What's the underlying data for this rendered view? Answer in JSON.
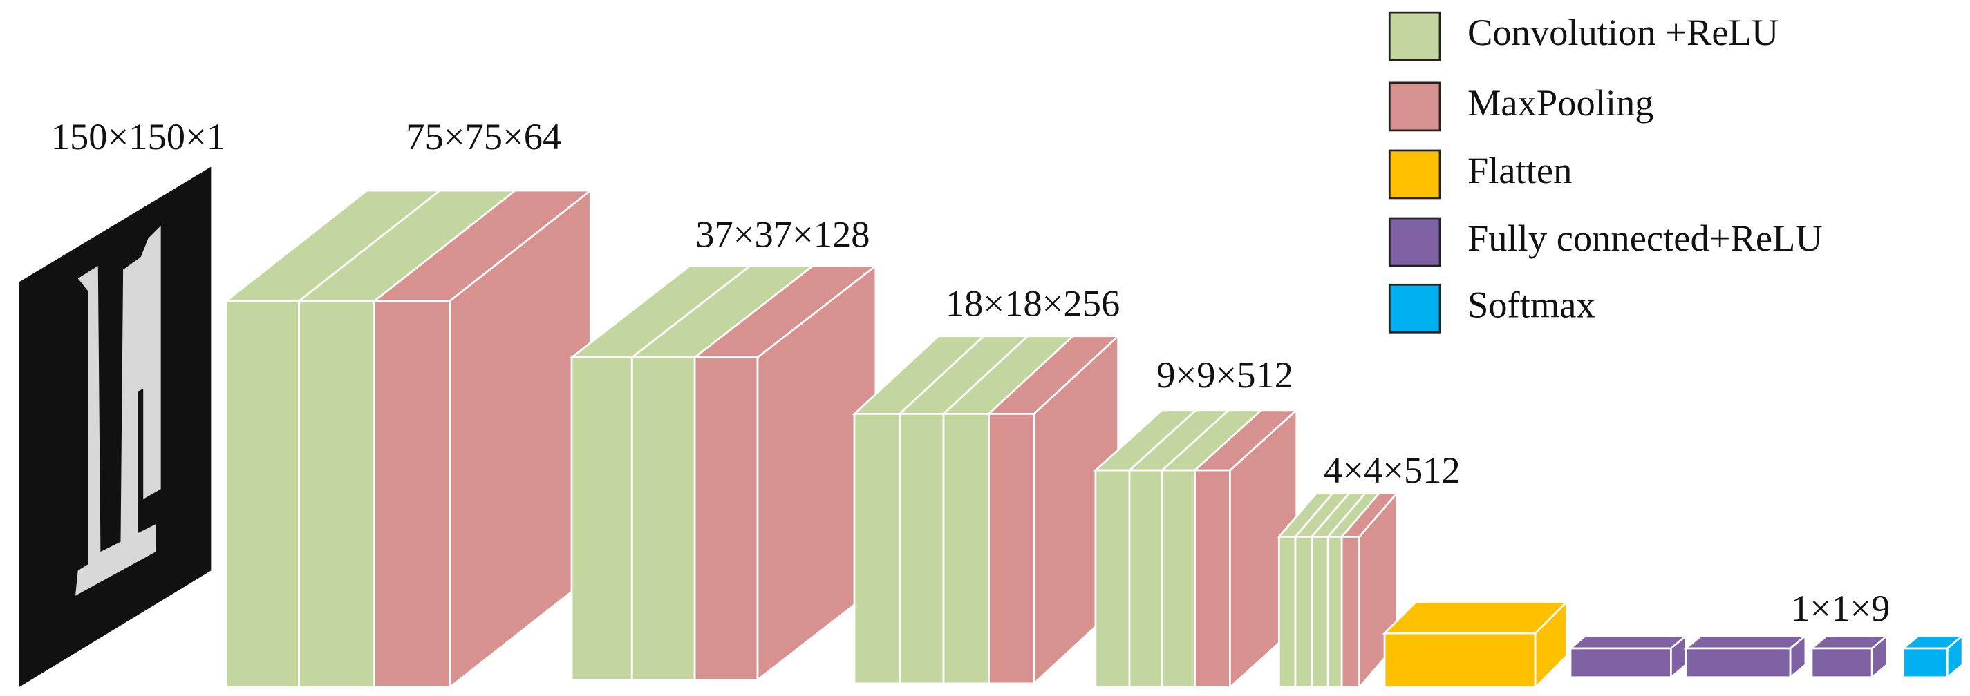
{
  "legend": {
    "items": [
      {
        "label": "Convolution +ReLU",
        "color": "#c4d6a0"
      },
      {
        "label": "MaxPooling",
        "color": "#d7928f"
      },
      {
        "label": "Flatten",
        "color": "#ffc000"
      },
      {
        "label": "Fully connected+ReLU",
        "color": "#7e62a3"
      },
      {
        "label": "Softmax",
        "color": "#00b0f0"
      }
    ]
  },
  "layers": [
    {
      "label": "150×150×1"
    },
    {
      "label": "75×75×64"
    },
    {
      "label": "37×37×128"
    },
    {
      "label": "18×18×256"
    },
    {
      "label": "9×9×512"
    },
    {
      "label": "4×4×512"
    },
    {
      "label": "1×1×9"
    }
  ]
}
